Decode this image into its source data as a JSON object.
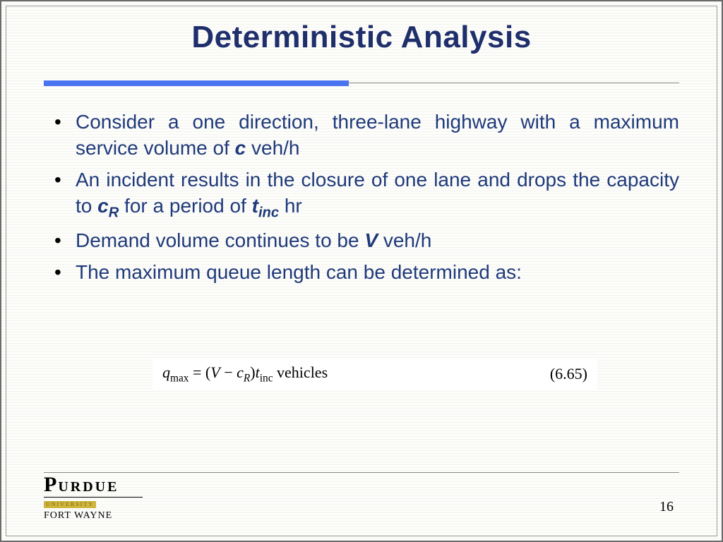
{
  "title": "Deterministic Analysis",
  "accent_bar_color": "#4a73f0",
  "text_color": "#1f3a7a",
  "bullets": [
    {
      "pre": "Consider a one direction, three-lane highway with a maximum service volume of ",
      "var1": "c",
      "post": " veh/h"
    },
    {
      "pre": "An incident results in the closure of one lane and drops the capacity to ",
      "var1": "c",
      "sub1": "R",
      "mid": " for a period of ",
      "var2": "t",
      "sub2": "inc",
      "post": " hr"
    },
    {
      "pre": "Demand volume continues to be ",
      "var1": "V",
      "post": " veh/h"
    },
    {
      "pre": "The maximum queue length can be determined as:"
    }
  ],
  "equation": {
    "lhs_var": "q",
    "lhs_sub": "max",
    "eq": " = (",
    "v1": "V",
    "minus": " − ",
    "v2": "c",
    "v2sub": "R",
    "close": ")",
    "v3": "t",
    "v3sub": "inc",
    "tail": " vehicles",
    "ref": "(6.65)"
  },
  "logo": {
    "line1_big": "P",
    "line1_rest": "URDUE",
    "line2": "UNIVERSITY",
    "line3": "FORT WAYNE"
  },
  "page_number": "16"
}
